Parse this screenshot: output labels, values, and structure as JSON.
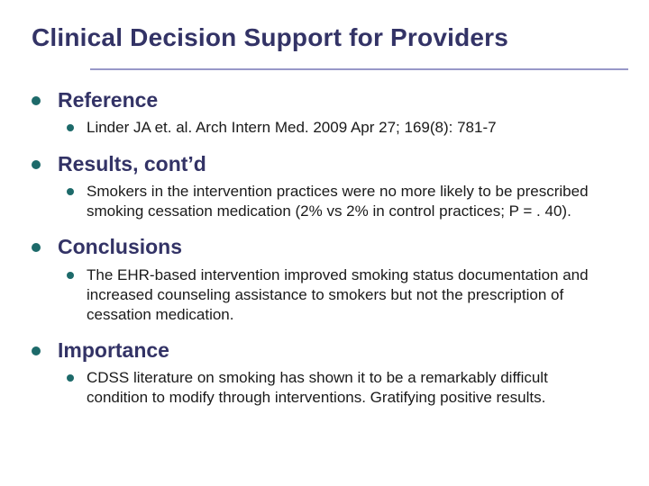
{
  "slide": {
    "title": "Clinical Decision Support for Providers",
    "colors": {
      "heading": "#333366",
      "bullet": "#1D6A6A",
      "body_text": "#1a1a1a",
      "title_rule": "#9898C8",
      "background": "#ffffff"
    },
    "sections": [
      {
        "heading": "Reference",
        "body": "Linder JA et. al. Arch Intern Med. 2009 Apr 27; 169(8): 781-7"
      },
      {
        "heading": "Results, cont’d",
        "body": "Smokers in the intervention practices were no more likely to be prescribed smoking cessation medication (2% vs 2% in control practices; P = . 40)."
      },
      {
        "heading": "Conclusions",
        "body": "The EHR-based intervention improved smoking status documentation and increased counseling assistance to smokers but not the prescription of cessation medication."
      },
      {
        "heading": "Importance",
        "body": "CDSS literature on smoking has shown it to be a remarkably difficult condition to modify through interventions. Gratifying positive results."
      }
    ]
  }
}
